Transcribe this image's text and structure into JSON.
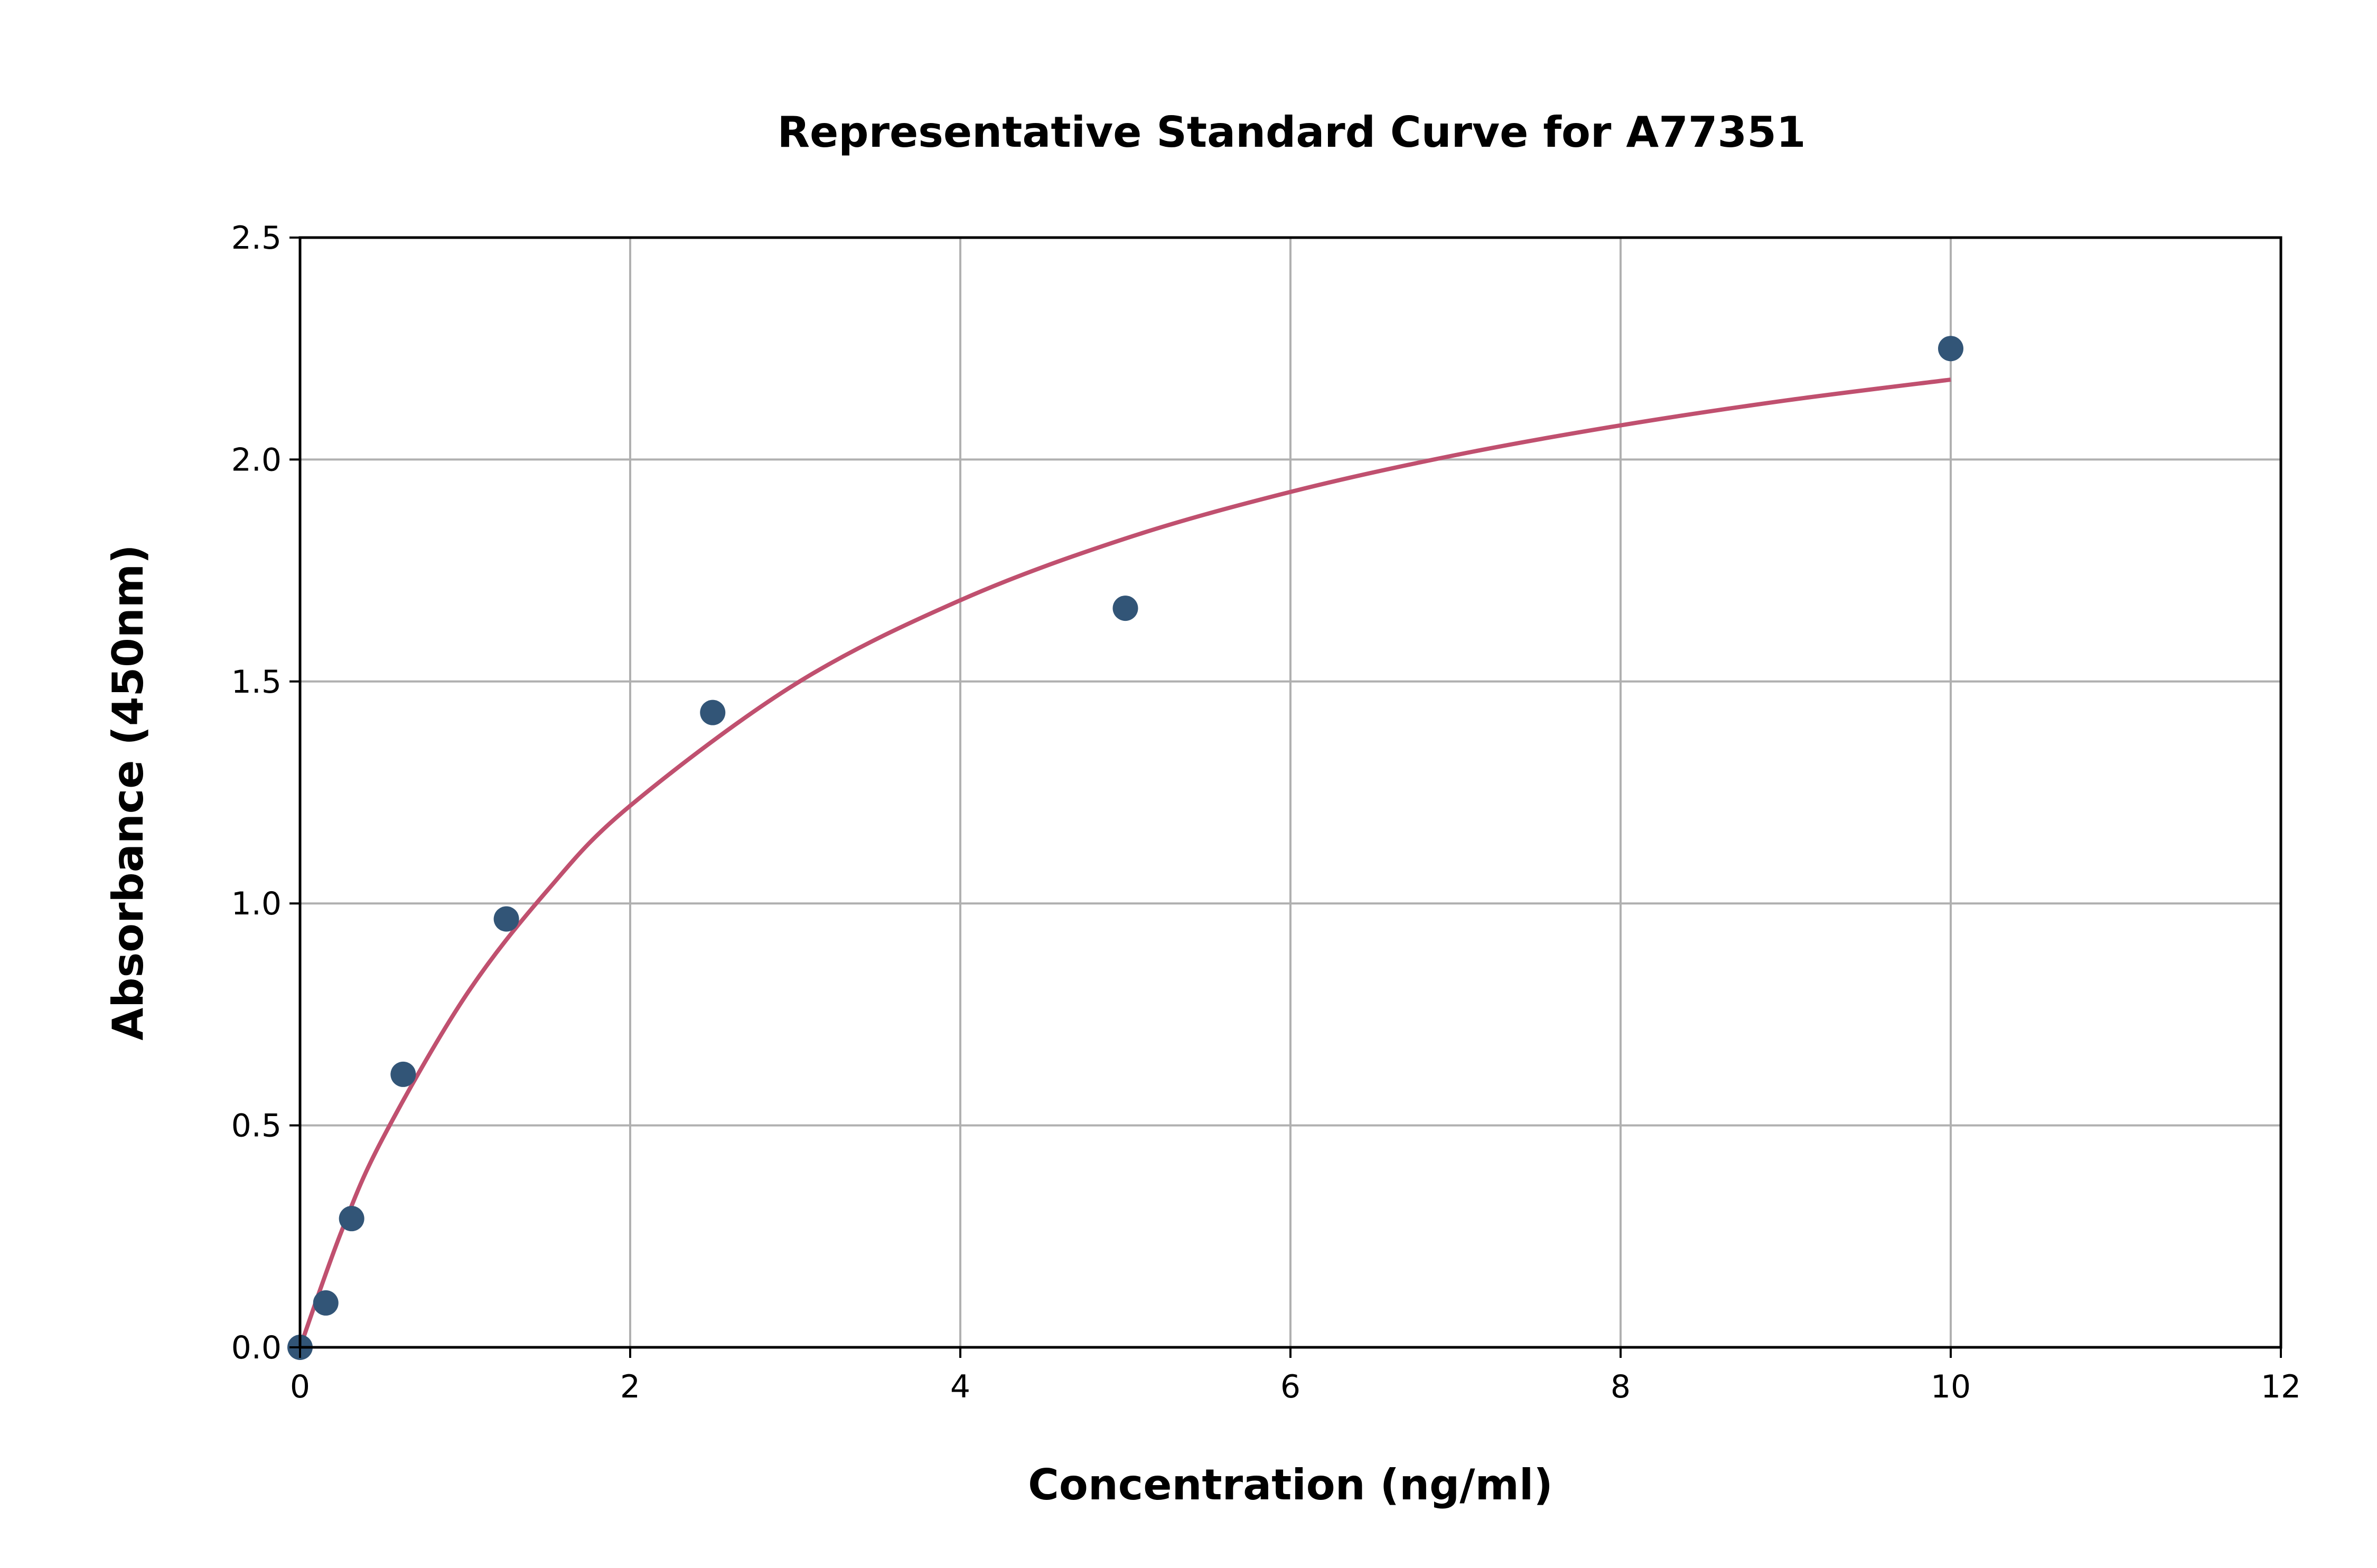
{
  "chart_data": {
    "type": "scatter",
    "title": "Representative Standard Curve for A77351",
    "xlabel": "Concentration (ng/ml)",
    "ylabel": "Absorbance (450nm)",
    "xlim": [
      0,
      12
    ],
    "ylim": [
      0,
      2.5
    ],
    "xticks": [
      0,
      2,
      4,
      6,
      8,
      10,
      12
    ],
    "xtick_labels": [
      "0",
      "2",
      "4",
      "6",
      "8",
      "10",
      "12"
    ],
    "yticks": [
      0,
      0.5,
      1.0,
      1.5,
      2.0,
      2.5
    ],
    "ytick_labels": [
      "0.0",
      "0.5",
      "1.0",
      "1.5",
      "2.0",
      "2.5"
    ],
    "grid": true,
    "points": {
      "x": [
        0,
        0.156,
        0.3125,
        0.625,
        1.25,
        2.5,
        5,
        10
      ],
      "y": [
        0.0,
        0.1,
        0.29,
        0.615,
        0.965,
        1.43,
        1.665,
        2.25
      ]
    },
    "fit_curve": {
      "x": [
        0,
        0.25,
        0.5,
        1,
        1.5,
        2,
        3,
        4,
        5,
        6,
        7,
        8,
        9,
        10
      ],
      "y": [
        0,
        0.26,
        0.47,
        0.79,
        1.03,
        1.22,
        1.494,
        1.683,
        1.822,
        1.927,
        2.01,
        2.077,
        2.133,
        2.18
      ]
    },
    "colors": {
      "points": "#325577",
      "curve": "#c0506f",
      "grid": "#b0b0b0"
    }
  }
}
